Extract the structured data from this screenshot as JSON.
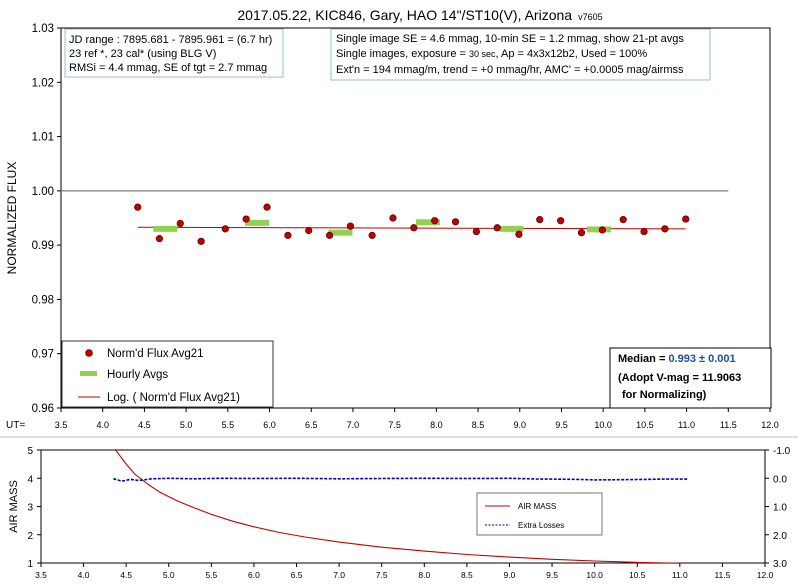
{
  "title": "2017.05.22, KIC846, Gary, HAO 14\"/ST10(V), Arizona",
  "version": "v7605",
  "info_left": [
    "JD range : 7895.681 - 7895.961 = (6.7 hr)",
    "23 ref *, 23 cal* (using BLG V)",
    "RMSi = 4.4 mmag, SE of tgt = 2.7 mmag"
  ],
  "info_right": {
    "line1": "Single image SE = 4.6 mmag, 10-min SE = 1.2 mmag, show 21-pt avgs",
    "line2_pre": "Single images, exposure = ",
    "line2_exp": "30 sec",
    "line2_post": ", Ap = 4x3x12b2, Used = 100%",
    "line3": "Ext'n = 194 mmag/m, trend = +0 mmag/hr, AMC' = +0.0005 mag/airmss"
  },
  "median_box": {
    "label": "Median = ",
    "value": "0.993 ± 0.001",
    "line2": "(Adopt V-mag = 11.9063",
    "line3": "for Normalizing)"
  },
  "legend_main": [
    "Norm'd Flux Avg21",
    "Hourly Avgs",
    "Log. ( Norm'd Flux Avg21)"
  ],
  "legend_bottom": [
    "AIR MASS",
    "Extra Losses"
  ],
  "colors": {
    "points": "#c00000",
    "hourly": "#92d050",
    "trend": "#c00000",
    "reference": "#808080",
    "airmass": "#c00000",
    "losses": "#0000c0",
    "median_value": "#1f4ea0"
  },
  "chart_data": [
    {
      "type": "scatter",
      "ylabel": "NORMALIZED FLUX",
      "xlabel": "UT=",
      "xlim": [
        3.5,
        12.0
      ],
      "ylim": [
        0.96,
        1.03
      ],
      "xticks": [
        "3.5",
        "4.0",
        "4.5",
        "5.0",
        "5.5",
        "6.0",
        "6.5",
        "7.0",
        "7.5",
        "8.0",
        "8.5",
        "9.0",
        "9.5",
        "10.0",
        "10.5",
        "11.0",
        "11.5",
        "12.0"
      ],
      "yticks": [
        "0.96",
        "0.97",
        "0.98",
        "0.99",
        "1.00",
        "1.01",
        "1.02",
        "1.03"
      ],
      "reference_line": {
        "y": 1.0,
        "x": [
          3.5,
          11.5
        ]
      },
      "series": [
        {
          "name": "Norm'd Flux Avg21",
          "x": [
            4.42,
            4.68,
            4.93,
            5.18,
            5.47,
            5.72,
            5.97,
            6.22,
            6.47,
            6.72,
            6.97,
            7.23,
            7.48,
            7.73,
            7.98,
            8.23,
            8.48,
            8.73,
            8.99,
            9.24,
            9.49,
            9.74,
            9.99,
            10.24,
            10.49,
            10.74,
            10.99
          ],
          "y": [
            0.997,
            0.9912,
            0.994,
            0.9907,
            0.993,
            0.9948,
            0.997,
            0.9918,
            0.9927,
            0.9918,
            0.9935,
            0.9918,
            0.995,
            0.9932,
            0.9945,
            0.9943,
            0.9925,
            0.9932,
            0.992,
            0.9947,
            0.9945,
            0.9923,
            0.9928,
            0.9947,
            0.9925,
            0.993,
            0.9948
          ]
        },
        {
          "name": "Hourly Avgs",
          "x": [
            4.75,
            5.85,
            6.85,
            7.9,
            8.9,
            9.95
          ],
          "y": [
            0.993,
            0.9941,
            0.9923,
            0.9942,
            0.993,
            0.9929
          ]
        },
        {
          "name": "Log. ( Norm'd Flux Avg21)",
          "x": [
            4.42,
            10.99
          ],
          "y": [
            0.9933,
            0.993
          ]
        }
      ]
    },
    {
      "type": "line",
      "ylabel": "AIR MASS",
      "xlim": [
        3.5,
        12.0
      ],
      "ylim": [
        1,
        5
      ],
      "y2lim": [
        -1.0,
        3.0
      ],
      "xticks": [
        "3.5",
        "4.0",
        "4.5",
        "5.0",
        "5.5",
        "6.0",
        "6.5",
        "7.0",
        "7.5",
        "8.0",
        "8.5",
        "9.0",
        "9.5",
        "10.0",
        "10.5",
        "11.0",
        "11.5",
        "12.0"
      ],
      "yticks": [
        "1",
        "2",
        "3",
        "4",
        "5"
      ],
      "y2ticks": [
        "-1.0",
        "0.0",
        "1.0",
        "2.0",
        "3.0"
      ],
      "series": [
        {
          "name": "AIR MASS",
          "x": [
            4.3,
            4.4,
            4.5,
            4.6,
            4.75,
            4.9,
            5.1,
            5.3,
            5.5,
            5.75,
            6.0,
            6.3,
            6.6,
            7.0,
            7.5,
            8.0,
            8.5,
            9.0,
            9.5,
            10.0,
            10.5,
            11.0,
            11.1
          ],
          "y": [
            5.3,
            4.9,
            4.5,
            4.15,
            3.8,
            3.5,
            3.2,
            2.95,
            2.72,
            2.48,
            2.28,
            2.08,
            1.92,
            1.74,
            1.56,
            1.42,
            1.3,
            1.21,
            1.13,
            1.07,
            1.02,
            0.99,
            0.98
          ]
        },
        {
          "name": "Extra Losses",
          "x": [
            4.35,
            4.45,
            4.55,
            4.65,
            4.8,
            5.0,
            5.3,
            5.6,
            6.0,
            6.5,
            7.0,
            7.5,
            8.0,
            8.5,
            9.0,
            9.35,
            9.5,
            9.8,
            10.0,
            10.3,
            10.6,
            10.8,
            11.1
          ],
          "y": [
            0.02,
            0.1,
            0.04,
            0.08,
            0.02,
            0.0,
            0.02,
            0.0,
            0.01,
            0.0,
            0.02,
            0.01,
            0.0,
            0.01,
            0.0,
            0.03,
            0.03,
            0.04,
            0.06,
            0.05,
            0.04,
            0.03,
            0.03
          ]
        }
      ]
    }
  ]
}
